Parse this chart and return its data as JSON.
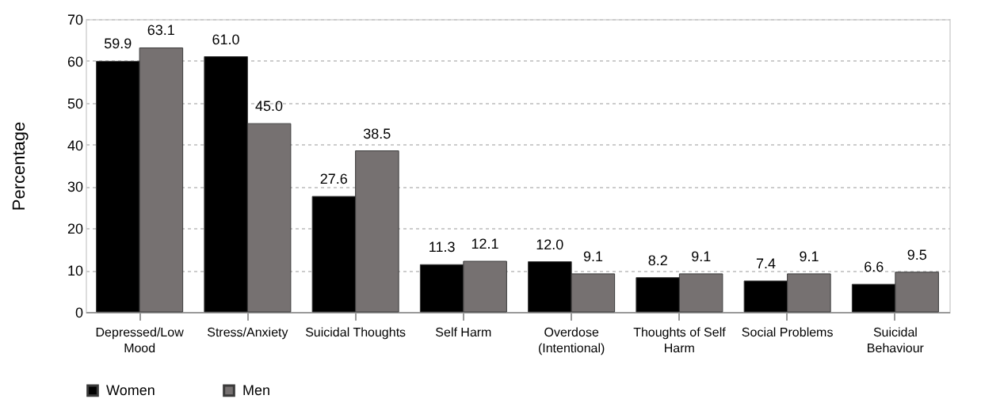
{
  "chart_data": {
    "type": "bar",
    "ylabel": "Percentage",
    "categories": [
      "Depressed/Low Mood",
      "Stress/Anxiety",
      "Suicidal Thoughts",
      "Self Harm",
      "Overdose (Intentional)",
      "Thoughts of Self Harm",
      "Social Problems",
      "Suicidal Behaviour"
    ],
    "series": [
      {
        "name": "Women",
        "color": "#000000",
        "values": [
          59.9,
          61.0,
          27.6,
          11.3,
          12.0,
          8.2,
          7.4,
          6.6
        ],
        "value_labels": [
          "59.9",
          "61.0",
          "27.6",
          "11.3",
          "12.0",
          "8.2",
          "7.4",
          "6.6"
        ]
      },
      {
        "name": "Men",
        "color": "#767171",
        "values": [
          63.1,
          45.0,
          38.5,
          12.1,
          9.1,
          9.1,
          9.1,
          9.5
        ],
        "value_labels": [
          "63.1",
          "45.0",
          "38.5",
          "12.1",
          "9.1",
          "9.1",
          "9.1",
          "9.5"
        ]
      }
    ],
    "ylim": [
      0,
      70
    ],
    "yticks": [
      0,
      10,
      20,
      30,
      40,
      50,
      60,
      70
    ],
    "grid": "y",
    "legend": "bottom"
  }
}
